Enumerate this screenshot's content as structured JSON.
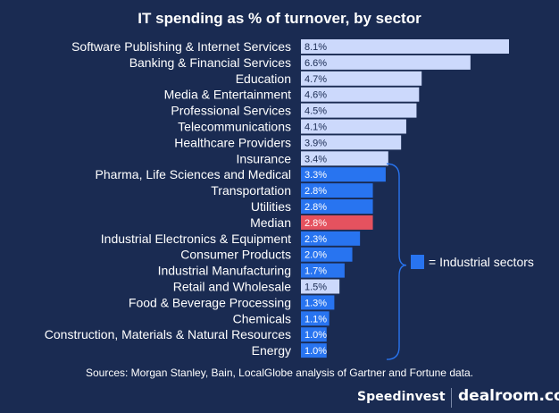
{
  "chart_data": {
    "type": "bar",
    "orientation": "horizontal",
    "title": "IT spending as % of turnover, by sector",
    "categories": [
      "Software Publishing & Internet Services",
      "Banking & Financial Services",
      "Education",
      "Media & Entertainment",
      "Professional Services",
      "Telecommunications",
      "Healthcare Providers",
      "Insurance",
      "Pharma, Life Sciences and Medical",
      "Transportation",
      "Utilities",
      "Median",
      "Industrial Electronics & Equipment",
      "Consumer Products",
      "Industrial Manufacturing",
      "Retail and Wholesale",
      "Food & Beverage Processing",
      "Chemicals",
      "Construction, Materials & Natural Resources",
      "Energy"
    ],
    "values": [
      8.1,
      6.6,
      4.7,
      4.6,
      4.5,
      4.1,
      3.9,
      3.4,
      3.3,
      2.8,
      2.8,
      2.8,
      2.3,
      2.0,
      1.7,
      1.5,
      1.3,
      1.1,
      1.0,
      1.0
    ],
    "value_labels": [
      "8.1%",
      "6.6%",
      "4.7%",
      "4.6%",
      "4.5%",
      "4.1%",
      "3.9%",
      "3.4%",
      "3.3%",
      "2.8%",
      "2.8%",
      "2.8%",
      "2.3%",
      "2.0%",
      "1.7%",
      "1.5%",
      "1.3%",
      "1.1%",
      "1.0%",
      "1.0%"
    ],
    "bar_groups": [
      "other",
      "other",
      "other",
      "other",
      "other",
      "other",
      "other",
      "other",
      "industrial",
      "industrial",
      "industrial",
      "median",
      "industrial",
      "industrial",
      "industrial",
      "other",
      "industrial",
      "industrial",
      "industrial",
      "industrial"
    ],
    "colors": {
      "background": "#1a2b52",
      "other": "#ccd9fc",
      "industrial": "#2874f0",
      "median": "#e5525f",
      "text": "#ffffff",
      "dark_label": "#1a2b52"
    },
    "legend": {
      "label": "= Industrial sectors",
      "position": "right"
    },
    "xlim": [
      0,
      8.1
    ],
    "grid": false,
    "source": "Sources: Morgan Stanley, Bain, LocalGlobe analysis of Gartner and Fortune data."
  },
  "footer": {
    "brand_left": "Speedinvest",
    "brand_right": "dealroom.co"
  }
}
